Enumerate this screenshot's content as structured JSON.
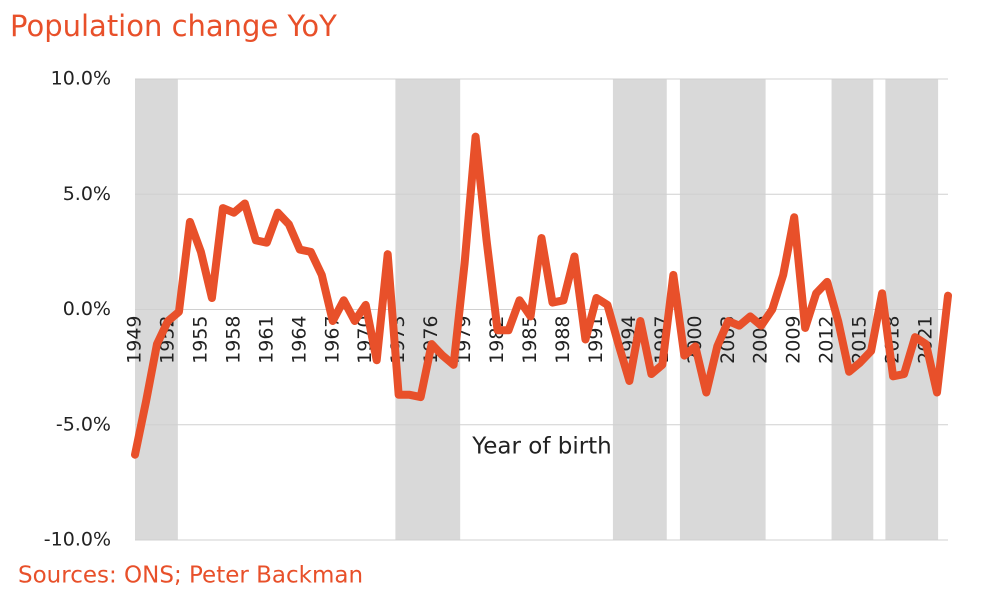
{
  "chart_data": {
    "type": "line",
    "title": "Population change YoY",
    "x_label": "Year of birth",
    "source": "Sources: ONS; Peter Backman",
    "x": [
      1949,
      1950,
      1951,
      1952,
      1953,
      1954,
      1955,
      1956,
      1957,
      1958,
      1959,
      1960,
      1961,
      1962,
      1963,
      1964,
      1965,
      1966,
      1967,
      1968,
      1969,
      1970,
      1971,
      1972,
      1973,
      1974,
      1975,
      1976,
      1977,
      1978,
      1979,
      1980,
      1981,
      1982,
      1983,
      1984,
      1985,
      1986,
      1987,
      1988,
      1989,
      1990,
      1991,
      1992,
      1993,
      1994,
      1995,
      1996,
      1997,
      1998,
      1999,
      2000,
      2001,
      2002,
      2003,
      2004,
      2005,
      2006,
      2007,
      2008,
      2009,
      2010,
      2011,
      2012,
      2013,
      2014,
      2015,
      2016,
      2017,
      2018,
      2019,
      2020,
      2021,
      2022,
      2023
    ],
    "series": [
      {
        "name": "Population change YoY",
        "color": "#e8502a",
        "values": [
          -6.3,
          -4,
          -1.5,
          -0.5,
          -0.1,
          3.8,
          2.5,
          0.5,
          4.4,
          4.2,
          4.6,
          3.0,
          2.9,
          4.2,
          3.7,
          2.6,
          2.5,
          1.5,
          -0.5,
          0.4,
          -0.5,
          0.2,
          -2.2,
          2.4,
          -3.7,
          -3.7,
          -3.8,
          -1.5,
          -2,
          -2.4,
          2.0,
          7.5,
          3.0,
          -0.9,
          -0.9,
          0.4,
          -0.3,
          3.1,
          0.3,
          0.4,
          2.3,
          -1.3,
          0.5,
          0.2,
          -1.5,
          -3.1,
          -0.5,
          -2.8,
          -2.4,
          1.5,
          -2.0,
          -1.6,
          -3.6,
          -1.6,
          -0.5,
          -0.7,
          -0.3,
          -0.7,
          0.0,
          1.5,
          4.0,
          -0.8,
          0.7,
          1.2,
          -0.5,
          -2.7,
          -2.3,
          -1.8,
          0.7,
          -2.9,
          -2.8,
          -1.2,
          -1.5,
          -3.6,
          0.6
        ]
      }
    ],
    "bands": [
      [
        1949,
        1952.9
      ],
      [
        1972.7,
        1978.6
      ],
      [
        1992.5,
        1997.4
      ],
      [
        1998.6,
        2006.4
      ],
      [
        2012.4,
        2016.2
      ],
      [
        2017.3,
        2022.1
      ]
    ],
    "band_color": "#d9d9d9",
    "xlim": [
      1949,
      2023
    ],
    "xticks": [
      1949,
      1952,
      1955,
      1958,
      1961,
      1964,
      1967,
      1970,
      1973,
      1976,
      1979,
      1982,
      1985,
      1988,
      1991,
      1994,
      1997,
      2000,
      2003,
      2006,
      2009,
      2012,
      2015,
      2018,
      2021
    ],
    "ylim": [
      -10,
      10
    ],
    "yticks": [
      {
        "value": -10,
        "label": "-10.0%"
      },
      {
        "value": -5,
        "label": "-5.0%"
      },
      {
        "value": 0,
        "label": "0.0%"
      },
      {
        "value": 5,
        "label": "5.0%"
      },
      {
        "value": 10,
        "label": "10.0%"
      }
    ],
    "grid": true
  }
}
